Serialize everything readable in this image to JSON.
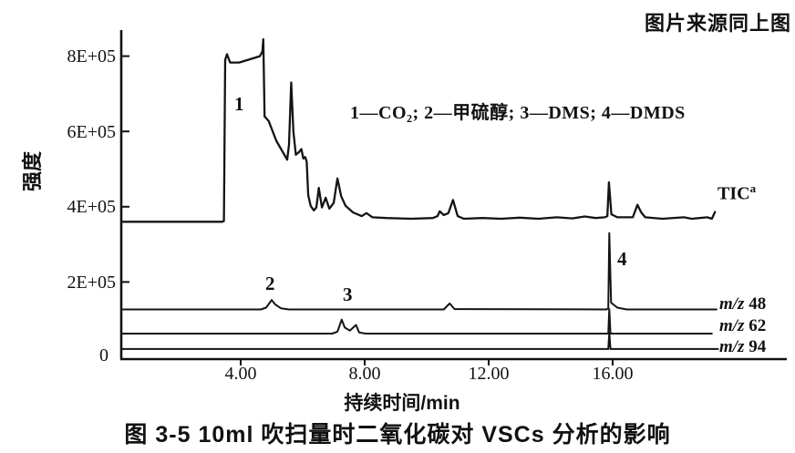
{
  "source_note": "图片来源同上图",
  "caption": "图 3-5  10ml 吹扫量时二氧化碳对 VSCs 分析的影响",
  "legend_text": "1—CO₂;  2—甲硫醇;  3—DMS;  4—DMDS",
  "peak_markers": [
    "1",
    "2",
    "3",
    "4"
  ],
  "chart_data": {
    "type": "line",
    "title": "",
    "xlabel": "持续时间/min",
    "ylabel": "强度",
    "xlim": [
      0.15,
      21.6
    ],
    "ylim": [
      0,
      870000
    ],
    "grid": false,
    "legend_position": "inside-top",
    "x_ticks": [
      {
        "value": 4,
        "label": "4.00"
      },
      {
        "value": 8,
        "label": "8.00"
      },
      {
        "value": 12,
        "label": "12.00"
      },
      {
        "value": 16,
        "label": "16.00"
      }
    ],
    "y_ticks": [
      {
        "value": 800000,
        "label": "8E+05"
      },
      {
        "value": 600000,
        "label": "6E+05"
      },
      {
        "value": 400000,
        "label": "4E+05"
      },
      {
        "value": 200000,
        "label": "2E+05"
      },
      {
        "value": 0,
        "label": "0"
      }
    ],
    "series": [
      {
        "id": "tic",
        "label": "TIC",
        "label_superscript": "a",
        "points": [
          [
            0.15,
            360000
          ],
          [
            3.4,
            360000
          ],
          [
            3.46,
            362000
          ],
          [
            3.5,
            790000
          ],
          [
            3.56,
            805000
          ],
          [
            3.66,
            783000
          ],
          [
            3.95,
            783000
          ],
          [
            4.35,
            793000
          ],
          [
            4.62,
            800000
          ],
          [
            4.7,
            812000
          ],
          [
            4.73,
            845000
          ],
          [
            4.77,
            640000
          ],
          [
            4.9,
            628000
          ],
          [
            5.15,
            575000
          ],
          [
            5.5,
            525000
          ],
          [
            5.56,
            565000
          ],
          [
            5.63,
            730000
          ],
          [
            5.7,
            600000
          ],
          [
            5.78,
            538000
          ],
          [
            5.88,
            545000
          ],
          [
            5.96,
            553000
          ],
          [
            6.02,
            528000
          ],
          [
            6.08,
            532000
          ],
          [
            6.13,
            520000
          ],
          [
            6.18,
            430000
          ],
          [
            6.26,
            402000
          ],
          [
            6.36,
            390000
          ],
          [
            6.44,
            398000
          ],
          [
            6.52,
            450000
          ],
          [
            6.62,
            398000
          ],
          [
            6.74,
            424000
          ],
          [
            6.86,
            395000
          ],
          [
            7.0,
            410000
          ],
          [
            7.12,
            475000
          ],
          [
            7.24,
            428000
          ],
          [
            7.38,
            403000
          ],
          [
            7.62,
            385000
          ],
          [
            7.9,
            375000
          ],
          [
            8.06,
            383000
          ],
          [
            8.25,
            372000
          ],
          [
            8.7,
            370000
          ],
          [
            9.5,
            368000
          ],
          [
            10.2,
            370000
          ],
          [
            10.35,
            375000
          ],
          [
            10.42,
            388000
          ],
          [
            10.55,
            378000
          ],
          [
            10.7,
            383000
          ],
          [
            10.85,
            418000
          ],
          [
            11.0,
            375000
          ],
          [
            11.2,
            368000
          ],
          [
            11.8,
            370000
          ],
          [
            12.4,
            368000
          ],
          [
            13.0,
            371000
          ],
          [
            13.6,
            368000
          ],
          [
            14.2,
            372000
          ],
          [
            14.7,
            369000
          ],
          [
            15.1,
            374000
          ],
          [
            15.45,
            370000
          ],
          [
            15.75,
            372000
          ],
          [
            15.83,
            375000
          ],
          [
            15.88,
            465000
          ],
          [
            15.96,
            380000
          ],
          [
            16.15,
            372000
          ],
          [
            16.65,
            372000
          ],
          [
            16.8,
            405000
          ],
          [
            16.92,
            385000
          ],
          [
            17.05,
            372000
          ],
          [
            17.6,
            368000
          ],
          [
            18.3,
            372000
          ],
          [
            18.55,
            368000
          ],
          [
            19.05,
            372000
          ],
          [
            19.2,
            368000
          ],
          [
            19.3,
            386000
          ]
        ]
      },
      {
        "id": "mz48",
        "label_italic": "m/z",
        "label_value": "48",
        "points": [
          [
            0.15,
            127000
          ],
          [
            4.65,
            127000
          ],
          [
            4.82,
            132000
          ],
          [
            5.0,
            152000
          ],
          [
            5.12,
            140000
          ],
          [
            5.3,
            130000
          ],
          [
            5.55,
            127000
          ],
          [
            10.55,
            127000
          ],
          [
            10.74,
            143000
          ],
          [
            10.9,
            128000
          ],
          [
            15.8,
            127000
          ],
          [
            15.86,
            130000
          ],
          [
            15.89,
            330000
          ],
          [
            15.95,
            145000
          ],
          [
            16.15,
            132000
          ],
          [
            16.45,
            127000
          ],
          [
            19.35,
            127000
          ]
        ]
      },
      {
        "id": "mz62",
        "label_italic": "m/z",
        "label_value": "62",
        "points": [
          [
            0.15,
            63000
          ],
          [
            6.95,
            63000
          ],
          [
            7.12,
            68000
          ],
          [
            7.26,
            100000
          ],
          [
            7.36,
            79000
          ],
          [
            7.52,
            71000
          ],
          [
            7.72,
            86000
          ],
          [
            7.82,
            66000
          ],
          [
            8.02,
            63000
          ],
          [
            15.86,
            63000
          ],
          [
            15.89,
            128000
          ],
          [
            15.93,
            63000
          ],
          [
            19.2,
            63000
          ]
        ]
      },
      {
        "id": "mz94",
        "label_italic": "m/z",
        "label_value": "94",
        "points": [
          [
            0.15,
            22000
          ],
          [
            15.86,
            22000
          ],
          [
            15.89,
            66000
          ],
          [
            15.93,
            22000
          ],
          [
            19.4,
            22000
          ]
        ]
      }
    ],
    "annotations": [
      {
        "marker": "1",
        "compound": "CO₂",
        "series": "tic",
        "time_min": 4.1
      },
      {
        "marker": "2",
        "compound": "甲硫醇",
        "series": "mz48",
        "time_min": 5.0
      },
      {
        "marker": "3",
        "compound": "DMS",
        "series": "mz62",
        "time_min": 7.3
      },
      {
        "marker": "4",
        "compound": "DMDS",
        "series": "mz48",
        "time_min": 15.9
      }
    ]
  }
}
